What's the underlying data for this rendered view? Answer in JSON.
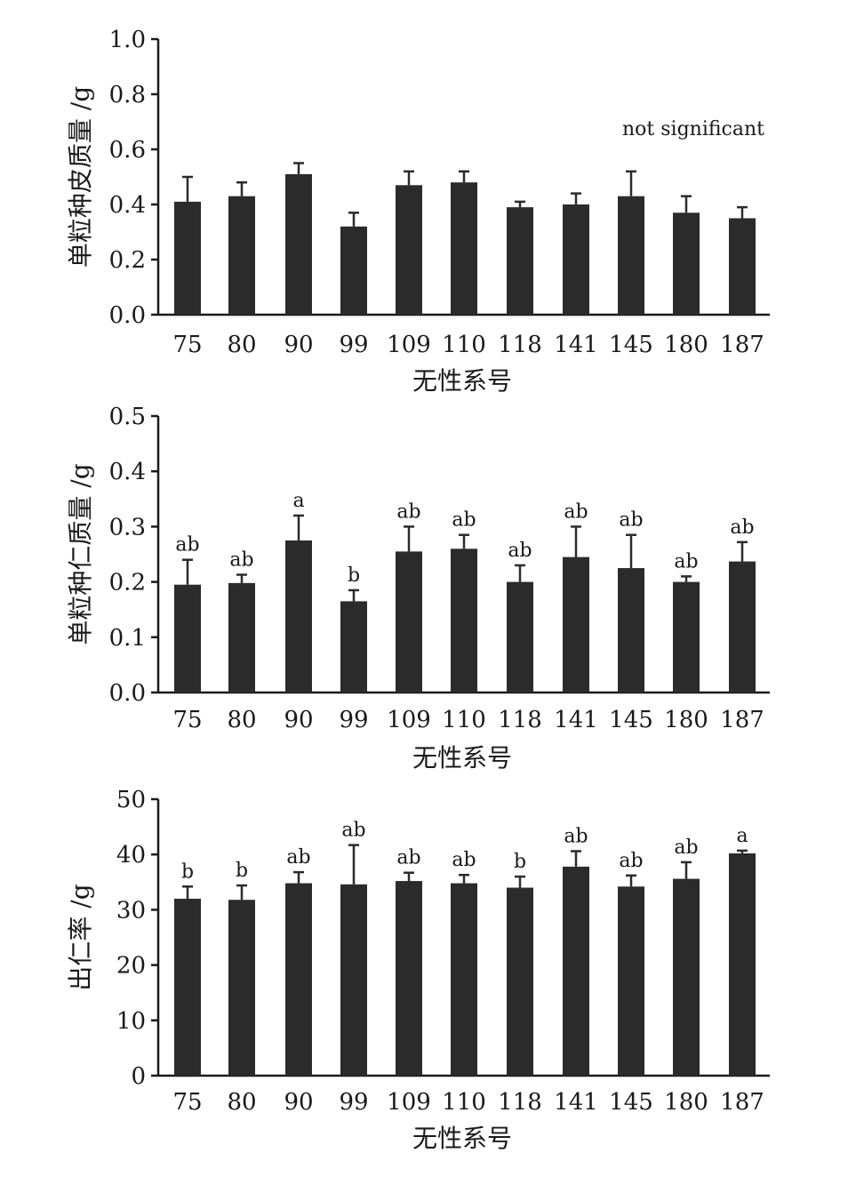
{
  "chart_data": [
    {
      "type": "bar",
      "ylabel": "单粒种皮质量 /g",
      "xlabel": "无性系号",
      "categories": [
        "75",
        "80",
        "90",
        "99",
        "109",
        "110",
        "118",
        "141",
        "145",
        "180",
        "187"
      ],
      "values": [
        0.41,
        0.43,
        0.51,
        0.32,
        0.47,
        0.48,
        0.39,
        0.4,
        0.43,
        0.37,
        0.35
      ],
      "errors": [
        0.09,
        0.05,
        0.04,
        0.05,
        0.05,
        0.04,
        0.02,
        0.04,
        0.09,
        0.06,
        0.04
      ],
      "significance": [
        "",
        "",
        "",
        "",
        "",
        "",
        "",
        "",
        "",
        "",
        ""
      ],
      "note": "not significant",
      "ylim": [
        0,
        1.0
      ],
      "yticks": [
        "0.0",
        "0.2",
        "0.4",
        "0.6",
        "0.8",
        "1.0"
      ],
      "bar_color": "#2b2b2b",
      "grid": false
    },
    {
      "type": "bar",
      "ylabel": "单粒种仁质量 /g",
      "xlabel": "无性系号",
      "categories": [
        "75",
        "80",
        "90",
        "99",
        "109",
        "110",
        "118",
        "141",
        "145",
        "180",
        "187"
      ],
      "values": [
        0.195,
        0.198,
        0.275,
        0.165,
        0.255,
        0.26,
        0.2,
        0.245,
        0.225,
        0.2,
        0.237
      ],
      "errors": [
        0.045,
        0.015,
        0.045,
        0.02,
        0.045,
        0.025,
        0.03,
        0.055,
        0.06,
        0.01,
        0.035
      ],
      "significance": [
        "ab",
        "ab",
        "a",
        "b",
        "ab",
        "ab",
        "ab",
        "ab",
        "ab",
        "ab",
        "ab"
      ],
      "note": "",
      "ylim": [
        0,
        0.5
      ],
      "yticks": [
        "0.0",
        "0.1",
        "0.2",
        "0.3",
        "0.4",
        "0.5"
      ],
      "bar_color": "#2b2b2b",
      "grid": false
    },
    {
      "type": "bar",
      "ylabel": "出仁率 /g",
      "xlabel": "无性系号",
      "categories": [
        "75",
        "80",
        "90",
        "99",
        "109",
        "110",
        "118",
        "141",
        "145",
        "180",
        "187"
      ],
      "values": [
        32,
        31.8,
        34.8,
        34.6,
        35.2,
        34.8,
        34,
        37.8,
        34.2,
        35.6,
        40.2
      ],
      "errors": [
        2.2,
        2.6,
        2.0,
        7.1,
        1.5,
        1.5,
        2.0,
        2.8,
        2.0,
        3.0,
        0.5
      ],
      "significance": [
        "b",
        "b",
        "ab",
        "ab",
        "ab",
        "ab",
        "b",
        "ab",
        "ab",
        "ab",
        "a"
      ],
      "note": "",
      "ylim": [
        0,
        50
      ],
      "yticks": [
        "0",
        "10",
        "20",
        "30",
        "40",
        "50"
      ],
      "bar_color": "#2b2b2b",
      "grid": false
    }
  ]
}
